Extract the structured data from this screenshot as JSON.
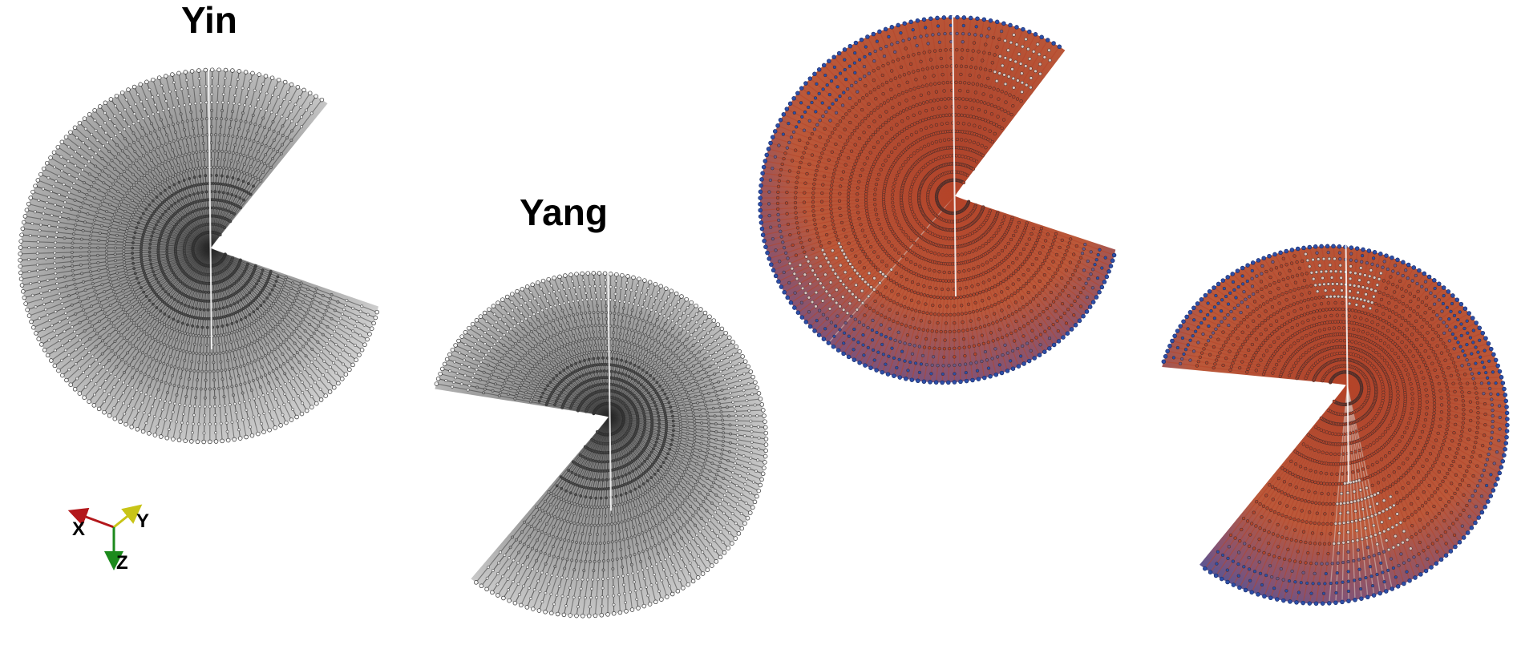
{
  "labels": {
    "yin": "Yin",
    "yang": "Yang"
  },
  "axes": {
    "x": "X",
    "y": "Y",
    "z": "Z"
  },
  "colors": {
    "background": "#ffffff",
    "grey_dark": "#2a2a2a",
    "grey_light": "#e6e6e6",
    "field_hot": "#b5452a",
    "field_mid": "#d9c9c2",
    "field_cold": "#2d4fa8",
    "axis_x": "#b3171b",
    "axis_y": "#c8c417",
    "axis_z": "#1c8a1c"
  },
  "panels": [
    {
      "id": "yin-grey",
      "grid": "yin",
      "coloring": "grey"
    },
    {
      "id": "yang-grey",
      "grid": "yang",
      "coloring": "grey"
    },
    {
      "id": "yin-colored",
      "grid": "yin",
      "coloring": "field"
    },
    {
      "id": "yang-colored",
      "grid": "yang",
      "coloring": "field"
    }
  ]
}
